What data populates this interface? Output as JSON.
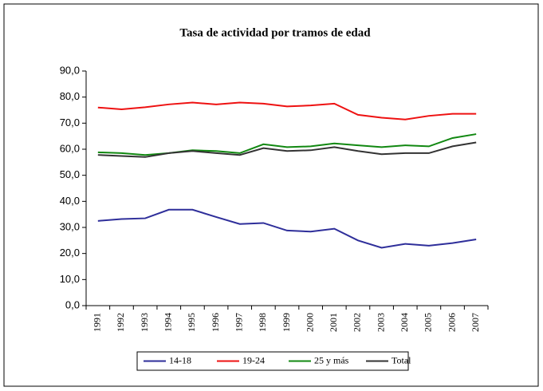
{
  "chart_data": {
    "type": "line",
    "title": "Tasa de actividad por tramos de edad",
    "categories": [
      "1991",
      "1992",
      "1993",
      "1994",
      "1995",
      "1996",
      "1997",
      "1998",
      "1999",
      "2000",
      "2001",
      "2002",
      "2003",
      "2004",
      "2005",
      "2006",
      "2007"
    ],
    "series": [
      {
        "name": "14-18",
        "color": "#2e2e9a",
        "values": [
          32.5,
          33.2,
          33.5,
          36.8,
          36.8,
          34.0,
          31.3,
          31.7,
          28.8,
          28.4,
          29.5,
          25.0,
          22.2,
          23.7,
          23.0,
          24.0,
          25.4
        ]
      },
      {
        "name": "19-24",
        "color": "#ee1111",
        "values": [
          76.0,
          75.3,
          76.1,
          77.2,
          77.9,
          77.2,
          77.9,
          77.5,
          76.4,
          76.8,
          77.5,
          73.2,
          72.1,
          71.4,
          72.8,
          73.6,
          73.6
        ]
      },
      {
        "name": "25 y más",
        "color": "#118811",
        "values": [
          58.8,
          58.5,
          57.8,
          58.5,
          59.6,
          59.3,
          58.5,
          61.9,
          60.8,
          61.1,
          62.2,
          61.5,
          60.8,
          61.5,
          61.1,
          64.3,
          65.8
        ]
      },
      {
        "name": "Total",
        "color": "#333333",
        "values": [
          57.8,
          57.4,
          57.0,
          58.5,
          59.3,
          58.5,
          57.8,
          60.4,
          59.3,
          59.6,
          60.8,
          59.3,
          58.1,
          58.5,
          58.5,
          61.1,
          62.6
        ]
      }
    ],
    "ylim": [
      0,
      90
    ],
    "yticks": [
      {
        "value": 0,
        "label": "0,0"
      },
      {
        "value": 10,
        "label": "10,0"
      },
      {
        "value": 20,
        "label": "20,0"
      },
      {
        "value": 30,
        "label": "30,0"
      },
      {
        "value": 40,
        "label": "40,0"
      },
      {
        "value": 50,
        "label": "50,0"
      },
      {
        "value": 60,
        "label": "60,0"
      },
      {
        "value": 70,
        "label": "70,0"
      },
      {
        "value": 80,
        "label": "80,0"
      },
      {
        "value": 90,
        "label": "90,0"
      }
    ],
    "grid": false,
    "legend": "bottom"
  }
}
